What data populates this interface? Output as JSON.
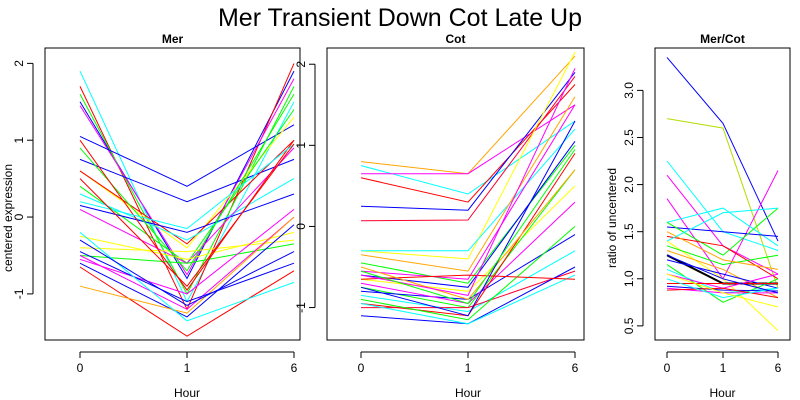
{
  "figure": {
    "title": "Mer Transient Down Cot Late Up"
  },
  "chart_data": [
    {
      "type": "line",
      "title": "Mer",
      "xlabel": "Hour",
      "ylabel": "centered expression",
      "x": [
        0,
        1,
        6
      ],
      "xticks": [
        "0",
        "1",
        "6"
      ],
      "yticks": [
        "-1",
        "0",
        "1",
        "2"
      ],
      "ylim": [
        -1.6,
        2.2
      ],
      "grid": false,
      "series": [
        {
          "color": "#0000ff",
          "values": [
            1.5,
            -0.8,
            1.9
          ]
        },
        {
          "color": "#00ffff",
          "values": [
            1.9,
            -1.1,
            1.5
          ]
        },
        {
          "color": "#ff0000",
          "values": [
            1.7,
            -1.2,
            2.0
          ]
        },
        {
          "color": "#00ff00",
          "values": [
            1.6,
            -1.0,
            1.7
          ]
        },
        {
          "color": "#ff00ff",
          "values": [
            1.45,
            -0.75,
            1.8
          ]
        },
        {
          "color": "#0000ff",
          "values": [
            1.05,
            0.4,
            1.2
          ]
        },
        {
          "color": "#0000ff",
          "values": [
            0.75,
            0.2,
            0.75
          ]
        },
        {
          "color": "#ffff00",
          "values": [
            0.6,
            -0.4,
            1.3
          ]
        },
        {
          "color": "#ff0000",
          "values": [
            0.6,
            -0.35,
            1.0
          ]
        },
        {
          "color": "#00ff00",
          "values": [
            0.4,
            -0.6,
            1.4
          ]
        },
        {
          "color": "#00ffff",
          "values": [
            0.3,
            -0.3,
            0.5
          ]
        },
        {
          "color": "#0000ff",
          "values": [
            0.15,
            -0.2,
            0.3
          ]
        },
        {
          "color": "#ff00ff",
          "values": [
            0.1,
            -0.6,
            0.9
          ]
        },
        {
          "color": "#ffff00",
          "values": [
            -0.25,
            -0.55,
            -0.2
          ]
        },
        {
          "color": "#ffff00",
          "values": [
            -0.4,
            -0.45,
            -0.3
          ]
        },
        {
          "color": "#00ff00",
          "values": [
            -0.5,
            -0.6,
            -0.35
          ]
        },
        {
          "color": "#ff00ff",
          "values": [
            -0.55,
            -1.0,
            0.1
          ]
        },
        {
          "color": "#0000ff",
          "values": [
            -0.6,
            -1.3,
            -0.1
          ]
        },
        {
          "color": "#ff0000",
          "values": [
            -0.65,
            -1.55,
            -0.7
          ]
        },
        {
          "color": "#ff00ff",
          "values": [
            -0.5,
            -1.2,
            0.0
          ]
        },
        {
          "color": "#ffa500",
          "values": [
            -0.9,
            -1.25,
            0.0
          ]
        },
        {
          "color": "#0000ff",
          "values": [
            -0.45,
            -1.1,
            -0.6
          ]
        },
        {
          "color": "#00ff00",
          "values": [
            0.9,
            -0.7,
            1.6
          ]
        },
        {
          "color": "#ff0000",
          "values": [
            1.0,
            -0.95,
            1.0
          ]
        },
        {
          "color": "#00ffff",
          "values": [
            0.2,
            -0.15,
            0.95
          ]
        },
        {
          "color": "#ff0000",
          "values": [
            0.5,
            -0.9,
            0.95
          ]
        },
        {
          "color": "#00ffff",
          "values": [
            -0.2,
            -1.35,
            -0.85
          ]
        },
        {
          "color": "#0000ff",
          "values": [
            -0.3,
            -1.15,
            -0.45
          ]
        }
      ]
    },
    {
      "type": "line",
      "title": "Cot",
      "xlabel": "Hour",
      "ylabel": "",
      "x": [
        0,
        1,
        6
      ],
      "xticks": [
        "0",
        "1",
        "6"
      ],
      "yticks": [
        "-1",
        "0",
        "1",
        "2"
      ],
      "ylim": [
        -1.4,
        2.2
      ],
      "grid": false,
      "series": [
        {
          "color": "#ffa500",
          "values": [
            0.8,
            0.65,
            2.1
          ]
        },
        {
          "color": "#00ffff",
          "values": [
            0.75,
            0.4,
            1.3
          ]
        },
        {
          "color": "#ff00ff",
          "values": [
            0.65,
            0.65,
            1.5
          ]
        },
        {
          "color": "#ff0000",
          "values": [
            0.6,
            0.3,
            1.75
          ]
        },
        {
          "color": "#0000ff",
          "values": [
            0.25,
            0.2,
            1.9
          ]
        },
        {
          "color": "#ff0033",
          "values": [
            0.07,
            0.08,
            1.85
          ]
        },
        {
          "color": "#ffff00",
          "values": [
            -0.3,
            -0.4,
            2.15
          ]
        },
        {
          "color": "#00ffff",
          "values": [
            -0.3,
            -0.3,
            1.2
          ]
        },
        {
          "color": "#ffa500",
          "values": [
            -0.35,
            -0.55,
            1.6
          ]
        },
        {
          "color": "#00ff00",
          "values": [
            -0.45,
            -0.7,
            1.0
          ]
        },
        {
          "color": "#ff00ff",
          "values": [
            -0.55,
            -0.65,
            1.5
          ]
        },
        {
          "color": "#ffff00",
          "values": [
            -0.65,
            -0.8,
            0.5
          ]
        },
        {
          "color": "#0000ff",
          "values": [
            -0.6,
            -0.75,
            1.05
          ]
        },
        {
          "color": "#00ff00",
          "values": [
            -0.75,
            -1.0,
            0.7
          ]
        },
        {
          "color": "#0000ff",
          "values": [
            -0.8,
            -0.9,
            -0.1
          ]
        },
        {
          "color": "#00ffff",
          "values": [
            -0.85,
            -1.05,
            -0.3
          ]
        },
        {
          "color": "#ff00ff",
          "values": [
            -0.7,
            -0.95,
            0.3
          ]
        },
        {
          "color": "#ff0000",
          "values": [
            -0.95,
            -1.1,
            0.9
          ]
        },
        {
          "color": "#ff0033",
          "values": [
            -1.0,
            -1.0,
            -0.55
          ]
        },
        {
          "color": "#0000ff",
          "values": [
            -1.1,
            -1.2,
            -0.5
          ]
        },
        {
          "color": "#00ff00",
          "values": [
            -0.9,
            -1.15,
            0.0
          ]
        },
        {
          "color": "#00ffff",
          "values": [
            -0.95,
            -1.2,
            -0.6
          ]
        },
        {
          "color": "#ff0000",
          "values": [
            -0.65,
            -0.6,
            -0.65
          ]
        },
        {
          "color": "#ffa500",
          "values": [
            -0.5,
            -0.9,
            0.7
          ]
        },
        {
          "color": "#0000ff",
          "values": [
            -0.75,
            -1.1,
            1.3
          ]
        },
        {
          "color": "#ff00ff",
          "values": [
            -0.6,
            -0.85,
            1.95
          ]
        },
        {
          "color": "#00ff00",
          "values": [
            -0.55,
            -0.95,
            0.95
          ]
        }
      ]
    },
    {
      "type": "line",
      "title": "Mer/Cot",
      "xlabel": "Hour",
      "ylabel": "ratio of uncentered",
      "x": [
        0,
        1,
        6
      ],
      "xticks": [
        "0",
        "1",
        "6"
      ],
      "yticks": [
        "0.5",
        "1.0",
        "1.5",
        "2.0",
        "2.5",
        "3.0"
      ],
      "ylim": [
        0.35,
        3.45
      ],
      "grid": false,
      "series": [
        {
          "color": "#0000ff",
          "values": [
            3.35,
            2.65,
            1.4
          ]
        },
        {
          "color": "#b3dd00",
          "values": [
            2.7,
            2.6,
            0.9
          ]
        },
        {
          "color": "#00ffff",
          "values": [
            2.25,
            1.5,
            1.3
          ]
        },
        {
          "color": "#ff00ff",
          "values": [
            2.1,
            1.35,
            1.05
          ]
        },
        {
          "color": "#ff00ff",
          "values": [
            1.85,
            1.0,
            2.15
          ]
        },
        {
          "color": "#00ffff",
          "values": [
            1.6,
            1.75,
            1.35
          ]
        },
        {
          "color": "#0000ff",
          "values": [
            1.55,
            1.5,
            1.45
          ]
        },
        {
          "color": "#00ff00",
          "values": [
            1.6,
            1.25,
            1.75
          ]
        },
        {
          "color": "#ff0000",
          "values": [
            1.45,
            1.35,
            1.0
          ]
        },
        {
          "color": "#ffff00",
          "values": [
            1.4,
            1.0,
            0.45
          ]
        },
        {
          "color": "#ffa500",
          "values": [
            1.3,
            1.1,
            0.8
          ]
        },
        {
          "color": "#000000",
          "values": [
            1.25,
            0.95,
            0.95
          ]
        },
        {
          "color": "#0000ff",
          "values": [
            1.2,
            1.05,
            0.9
          ]
        },
        {
          "color": "#00ff00",
          "values": [
            1.15,
            0.75,
            1.0
          ]
        },
        {
          "color": "#00ffff",
          "values": [
            1.1,
            0.85,
            0.9
          ]
        },
        {
          "color": "#ff00ff",
          "values": [
            1.05,
            0.9,
            1.05
          ]
        },
        {
          "color": "#ff0000",
          "values": [
            0.95,
            0.95,
            0.95
          ]
        },
        {
          "color": "#0000ff",
          "values": [
            0.92,
            0.88,
            0.87
          ]
        },
        {
          "color": "#ff00ff",
          "values": [
            0.9,
            0.85,
            0.85
          ]
        },
        {
          "color": "#ff0000",
          "values": [
            0.88,
            0.9,
            0.8
          ]
        },
        {
          "color": "#00ffff",
          "values": [
            1.0,
            0.8,
            0.9
          ]
        },
        {
          "color": "#ffff00",
          "values": [
            1.05,
            0.85,
            0.7
          ]
        },
        {
          "color": "#00ff00",
          "values": [
            1.35,
            1.15,
            1.25
          ]
        },
        {
          "color": "#0000ff",
          "values": [
            1.25,
            1.0,
            0.85
          ]
        },
        {
          "color": "#ffa500",
          "values": [
            1.5,
            1.2,
            1.1
          ]
        },
        {
          "color": "#00ffff",
          "values": [
            1.4,
            1.7,
            1.75
          ]
        }
      ]
    }
  ]
}
